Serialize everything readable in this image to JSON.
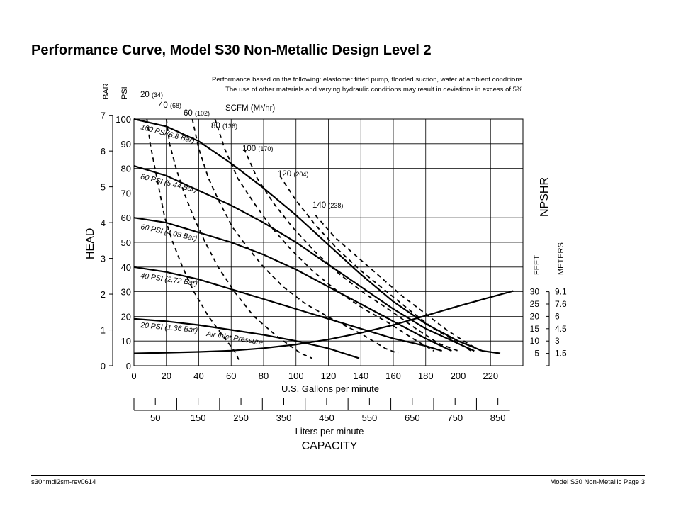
{
  "page": {
    "title": "Performance Curve, Model S30 Non-Metallic Design Level 2",
    "note_line1": "Performance based on the following: elastomer fitted pump, flooded suction, water at ambient conditions.",
    "note_line2": "The use of other materials and varying hydraulic conditions may result in deviations in excess of 5%.",
    "footer_left": "s30nmdl2sm-rev0614",
    "footer_right": "Model S30 Non-Metallic Page 3"
  },
  "chart_data": {
    "type": "line",
    "axis_labels": {
      "bar": "BAR",
      "psi": "PSI",
      "head": "HEAD",
      "gpm": "U.S. Gallons per minute",
      "lpm": "Liters per minute",
      "capacity": "CAPACITY",
      "npshr": "NPSHR",
      "feet": "FEET",
      "meters": "METERS",
      "scfm_label": "SCFM (M³/hr)",
      "air_inlet": "Air Inlet Pressure"
    },
    "x_gpm": {
      "range": [
        0,
        240
      ],
      "ticks": [
        "0",
        "20",
        "40",
        "60",
        "80",
        "100",
        "120",
        "140",
        "160",
        "180",
        "200",
        "220"
      ]
    },
    "x_lpm": {
      "ticks": [
        "50",
        "150",
        "250",
        "350",
        "450",
        "550",
        "650",
        "750",
        "850"
      ]
    },
    "y_psi": {
      "range": [
        0,
        100
      ],
      "ticks": [
        "0",
        "10",
        "20",
        "30",
        "40",
        "50",
        "60",
        "70",
        "80",
        "90",
        "100"
      ]
    },
    "y_bar": {
      "ticks": [
        "0",
        "1",
        "2",
        "3",
        "4",
        "5",
        "6",
        "7"
      ]
    },
    "npshr_scale": [
      {
        "feet": "30",
        "meters": "9.1"
      },
      {
        "feet": "25",
        "meters": "7.6"
      },
      {
        "feet": "20",
        "meters": "6"
      },
      {
        "feet": "15",
        "meters": "4.5"
      },
      {
        "feet": "10",
        "meters": "3"
      },
      {
        "feet": "5",
        "meters": "1.5"
      }
    ],
    "grid": true,
    "air_pressure_curves": [
      {
        "label": "100 PSI(6.8 Bar)",
        "points": [
          [
            0,
            100
          ],
          [
            20,
            97
          ],
          [
            40,
            91
          ],
          [
            60,
            82
          ],
          [
            80,
            72
          ],
          [
            100,
            61
          ],
          [
            120,
            49
          ],
          [
            140,
            37
          ],
          [
            160,
            26
          ],
          [
            180,
            17
          ],
          [
            200,
            10
          ],
          [
            215,
            6
          ],
          [
            226,
            5
          ]
        ]
      },
      {
        "label": "80 PSI (5.44 Bar)",
        "points": [
          [
            0,
            81
          ],
          [
            20,
            77
          ],
          [
            40,
            71
          ],
          [
            60,
            65
          ],
          [
            80,
            58
          ],
          [
            100,
            50
          ],
          [
            120,
            41
          ],
          [
            140,
            32
          ],
          [
            160,
            23
          ],
          [
            180,
            15
          ],
          [
            200,
            9
          ],
          [
            210,
            6
          ]
        ]
      },
      {
        "label": "60 PSI (4.08 Bar)",
        "points": [
          [
            0,
            60
          ],
          [
            20,
            58
          ],
          [
            40,
            54
          ],
          [
            60,
            50
          ],
          [
            80,
            45
          ],
          [
            100,
            39
          ],
          [
            120,
            32
          ],
          [
            140,
            25
          ],
          [
            160,
            18
          ],
          [
            180,
            11
          ],
          [
            196,
            6
          ]
        ]
      },
      {
        "label": "40 PSI (2.72 Bar)",
        "points": [
          [
            0,
            40
          ],
          [
            20,
            38
          ],
          [
            40,
            35
          ],
          [
            60,
            31
          ],
          [
            80,
            27
          ],
          [
            100,
            23
          ],
          [
            120,
            19
          ],
          [
            140,
            15
          ],
          [
            160,
            11
          ],
          [
            180,
            8
          ],
          [
            190,
            6
          ]
        ]
      },
      {
        "label": "20 PSI (1.36 Bar)",
        "points": [
          [
            0,
            19
          ],
          [
            20,
            18
          ],
          [
            40,
            16.5
          ],
          [
            60,
            14.5
          ],
          [
            80,
            12.5
          ],
          [
            100,
            10
          ],
          [
            120,
            7
          ],
          [
            139,
            3
          ]
        ]
      }
    ],
    "scfm_curves": [
      {
        "label": "20",
        "m3hr": "(34)",
        "points": [
          [
            8,
            100
          ],
          [
            10,
            90
          ],
          [
            13,
            80
          ],
          [
            16,
            70
          ],
          [
            19,
            60
          ],
          [
            24,
            50
          ],
          [
            30,
            40
          ],
          [
            37,
            30
          ],
          [
            46,
            20
          ],
          [
            55,
            12
          ],
          [
            62,
            6
          ],
          [
            65,
            2
          ]
        ]
      },
      {
        "label": "40",
        "m3hr": "(68)",
        "points": [
          [
            20,
            100
          ],
          [
            22,
            90
          ],
          [
            26,
            80
          ],
          [
            31,
            70
          ],
          [
            37,
            60
          ],
          [
            44,
            50
          ],
          [
            52,
            40
          ],
          [
            62,
            30
          ],
          [
            74,
            20
          ],
          [
            88,
            12
          ],
          [
            103,
            5
          ],
          [
            110,
            3
          ]
        ]
      },
      {
        "label": "60",
        "m3hr": "(102)",
        "points": [
          [
            36,
            100
          ],
          [
            40,
            88
          ],
          [
            46,
            76
          ],
          [
            53,
            66
          ],
          [
            61,
            56
          ],
          [
            70,
            48
          ],
          [
            80,
            40
          ],
          [
            92,
            32
          ],
          [
            106,
            25
          ],
          [
            122,
            19
          ],
          [
            140,
            13
          ],
          [
            155,
            7
          ],
          [
            163,
            5
          ]
        ]
      },
      {
        "label": "80",
        "m3hr": "(136)",
        "points": [
          [
            50,
            100
          ],
          [
            56,
            88
          ],
          [
            64,
            76
          ],
          [
            74,
            66
          ],
          [
            85,
            56
          ],
          [
            97,
            47
          ],
          [
            111,
            38
          ],
          [
            126,
            30
          ],
          [
            142,
            23
          ],
          [
            158,
            17
          ],
          [
            172,
            11
          ],
          [
            185,
            6
          ]
        ]
      },
      {
        "label": "100",
        "m3hr": "(170)",
        "points": [
          [
            68,
            88
          ],
          [
            76,
            76
          ],
          [
            86,
            66
          ],
          [
            98,
            56
          ],
          [
            112,
            46
          ],
          [
            127,
            37
          ],
          [
            143,
            29
          ],
          [
            159,
            22
          ],
          [
            174,
            15
          ],
          [
            188,
            9
          ],
          [
            200,
            6
          ]
        ]
      },
      {
        "label": "120",
        "m3hr": "(204)",
        "points": [
          [
            90,
            77
          ],
          [
            100,
            67
          ],
          [
            112,
            57
          ],
          [
            126,
            47
          ],
          [
            141,
            38
          ],
          [
            156,
            30
          ],
          [
            171,
            22
          ],
          [
            185,
            15
          ],
          [
            198,
            10
          ],
          [
            208,
            6
          ]
        ]
      },
      {
        "label": "140",
        "m3hr": "(238)",
        "points": [
          [
            112,
            61
          ],
          [
            124,
            52
          ],
          [
            138,
            44
          ],
          [
            152,
            36
          ],
          [
            166,
            28
          ],
          [
            180,
            21
          ],
          [
            194,
            14
          ],
          [
            206,
            9
          ],
          [
            214,
            6
          ]
        ]
      }
    ],
    "npshr_curve": {
      "points": [
        [
          0,
          5
        ],
        [
          20,
          5.3
        ],
        [
          40,
          5.6
        ],
        [
          60,
          6.1
        ],
        [
          80,
          7.1
        ],
        [
          100,
          8.6
        ],
        [
          120,
          10.6
        ],
        [
          140,
          13.3
        ],
        [
          160,
          16.5
        ],
        [
          180,
          20.3
        ],
        [
          200,
          24.1
        ],
        [
          220,
          27.8
        ],
        [
          234,
          30.3
        ]
      ]
    }
  }
}
